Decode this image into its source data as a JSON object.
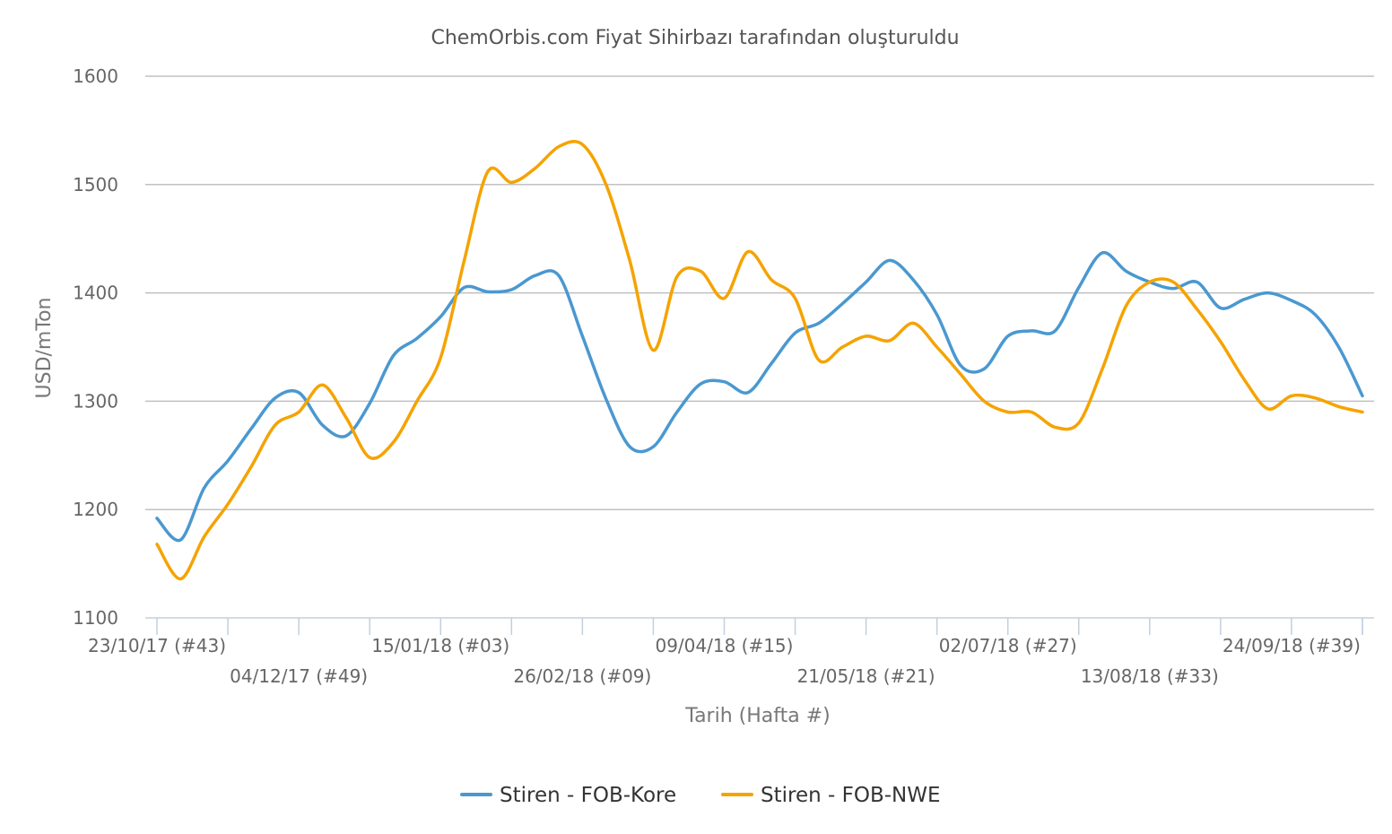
{
  "chart_data": {
    "type": "line",
    "title": "ChemOrbis.com Fiyat Sihirbazı tarafından oluşturuldu",
    "xlabel": "Tarih (Hafta #)",
    "ylabel": "USD/mTon",
    "ylim": [
      1100,
      1600
    ],
    "yticks": [
      1100,
      1200,
      1300,
      1400,
      1500,
      1600
    ],
    "grid": true,
    "legend_position": "bottom",
    "x_tick_labels": [
      {
        "week_index": 0,
        "label": "23/10/17 (#43)"
      },
      {
        "week_index": 6,
        "label": "04/12/17 (#49)"
      },
      {
        "week_index": 12,
        "label": "15/01/18 (#03)"
      },
      {
        "week_index": 18,
        "label": "26/02/18 (#09)"
      },
      {
        "week_index": 24,
        "label": "09/04/18 (#15)"
      },
      {
        "week_index": 30,
        "label": "21/05/18 (#21)"
      },
      {
        "week_index": 36,
        "label": "02/07/18 (#27)"
      },
      {
        "week_index": 42,
        "label": "13/08/18 (#33)"
      },
      {
        "week_index": 48,
        "label": "24/09/18 (#39)"
      }
    ],
    "x": [
      0,
      1,
      2,
      3,
      4,
      5,
      6,
      7,
      8,
      9,
      10,
      11,
      12,
      13,
      14,
      15,
      16,
      17,
      18,
      19,
      20,
      21,
      22,
      23,
      24,
      25,
      26,
      27,
      28,
      29,
      30,
      31,
      32,
      33,
      34,
      35,
      36,
      37,
      38,
      39,
      40,
      41,
      42,
      43,
      44,
      45,
      46,
      47,
      48,
      49,
      50,
      51
    ],
    "series": [
      {
        "name": "Stiren - FOB-Kore",
        "color": "#4a98d0",
        "values": [
          1192,
          1172,
          1220,
          1245,
          1275,
          1303,
          1308,
          1278,
          1268,
          1298,
          1342,
          1358,
          1378,
          1405,
          1401,
          1403,
          1416,
          1416,
          1360,
          1302,
          1258,
          1258,
          1290,
          1316,
          1318,
          1308,
          1335,
          1363,
          1372,
          1390,
          1410,
          1430,
          1412,
          1380,
          1333,
          1330,
          1360,
          1365,
          1365,
          1405,
          1437,
          1420,
          1410,
          1404,
          1410,
          1386,
          1394,
          1400,
          1393,
          1380,
          1350,
          1305
        ]
      },
      {
        "name": "Stiren - FOB-NWE",
        "color": "#f5a300",
        "values": [
          1168,
          1136,
          1175,
          1205,
          1240,
          1278,
          1290,
          1315,
          1285,
          1248,
          1262,
          1300,
          1340,
          1430,
          1512,
          1502,
          1515,
          1535,
          1537,
          1500,
          1430,
          1347,
          1415,
          1420,
          1395,
          1438,
          1412,
          1395,
          1338,
          1350,
          1360,
          1356,
          1372,
          1350,
          1325,
          1300,
          1290,
          1290,
          1276,
          1280,
          1330,
          1388,
          1410,
          1410,
          1385,
          1355,
          1320,
          1293,
          1305,
          1303,
          1295,
          1290
        ]
      }
    ]
  }
}
